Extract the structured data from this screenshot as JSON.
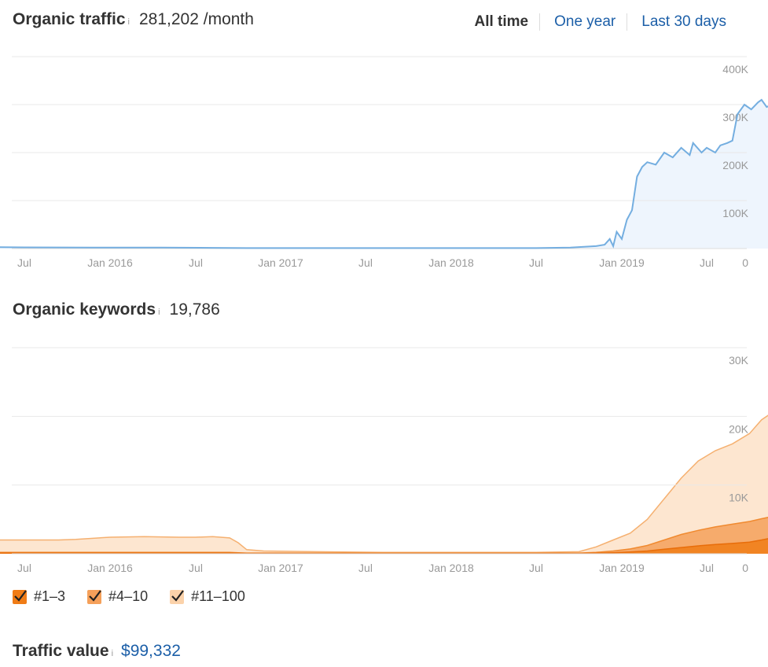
{
  "organic_traffic": {
    "title": "Organic traffic",
    "info": "i",
    "value": "281,202 /month"
  },
  "period_tabs": [
    {
      "label": "All time",
      "active": true
    },
    {
      "label": "One year",
      "active": false
    },
    {
      "label": "Last 30 days",
      "active": false
    }
  ],
  "organic_keywords": {
    "title": "Organic keywords",
    "info": "i",
    "value": "19,786"
  },
  "legend": [
    {
      "label": "#1–3",
      "color": "#f07c16"
    },
    {
      "label": "#4–10",
      "color": "#f5a05a"
    },
    {
      "label": "#11–100",
      "color": "#fbd2aa"
    }
  ],
  "traffic_value": {
    "title": "Traffic value",
    "info": "i",
    "value": "$99,332"
  },
  "chart_data": [
    {
      "type": "area",
      "name": "organic-traffic-chart",
      "x_ticks": [
        "Jul",
        "Jan 2016",
        "Jul",
        "Jan 2017",
        "Jul",
        "Jan 2018",
        "Jul",
        "Jan 2019",
        "Jul"
      ],
      "y_ticks": [
        "400K",
        "300K",
        "200K",
        "100K",
        "0"
      ],
      "ylim": [
        0,
        400000
      ],
      "x": [
        2015.29,
        2015.5,
        2015.9,
        2016.3,
        2016.6,
        2016.8,
        2017.5,
        2018.5,
        2018.7,
        2018.85,
        2018.9,
        2018.93,
        2018.95,
        2018.97,
        2019.0,
        2019.03,
        2019.06,
        2019.09,
        2019.12,
        2019.15,
        2019.2,
        2019.25,
        2019.3,
        2019.35,
        2019.4,
        2019.42,
        2019.47,
        2019.5,
        2019.55,
        2019.58,
        2019.62,
        2019.65,
        2019.68,
        2019.72,
        2019.76,
        2019.8,
        2019.82,
        2019.85,
        2019.88
      ],
      "values": [
        3000,
        2500,
        2000,
        2000,
        1500,
        1000,
        1000,
        1000,
        2000,
        5000,
        8000,
        20000,
        5000,
        35000,
        20000,
        60000,
        80000,
        150000,
        170000,
        180000,
        175000,
        200000,
        190000,
        210000,
        195000,
        220000,
        200000,
        210000,
        200000,
        215000,
        220000,
        225000,
        280000,
        300000,
        290000,
        305000,
        310000,
        295000,
        300000
      ],
      "color": "#74aee0",
      "fill": "#eef5fd"
    },
    {
      "type": "area",
      "name": "organic-keywords-chart",
      "x_ticks": [
        "Jul",
        "Jan 2016",
        "Jul",
        "Jan 2017",
        "Jul",
        "Jan 2018",
        "Jul",
        "Jan 2019",
        "Jul"
      ],
      "y_ticks": [
        "30K",
        "20K",
        "10K",
        "0"
      ],
      "ylim": [
        0,
        30000
      ],
      "x": [
        2015.29,
        2015.5,
        2015.7,
        2015.8,
        2016.0,
        2016.2,
        2016.4,
        2016.5,
        2016.6,
        2016.7,
        2016.75,
        2016.8,
        2016.9,
        2017.2,
        2017.6,
        2018.0,
        2018.5,
        2018.75,
        2018.85,
        2018.95,
        2019.05,
        2019.15,
        2019.25,
        2019.35,
        2019.45,
        2019.55,
        2019.65,
        2019.75,
        2019.82,
        2019.88
      ],
      "series": [
        {
          "name": "#11–100",
          "values": [
            2000,
            2000,
            2000,
            2100,
            2400,
            2500,
            2400,
            2400,
            2500,
            2300,
            1600,
            600,
            400,
            300,
            200,
            200,
            200,
            300,
            1000,
            2000,
            3000,
            5000,
            8000,
            11000,
            13500,
            15000,
            16000,
            17500,
            19500,
            20500
          ]
        },
        {
          "name": "#4–10",
          "values": [
            200,
            200,
            200,
            200,
            200,
            200,
            200,
            200,
            200,
            200,
            150,
            100,
            100,
            100,
            100,
            100,
            100,
            100,
            200,
            400,
            700,
            1200,
            2000,
            2800,
            3400,
            3900,
            4300,
            4700,
            5100,
            5400
          ]
        },
        {
          "name": "#1–3",
          "values": [
            100,
            100,
            100,
            100,
            100,
            100,
            100,
            100,
            100,
            100,
            80,
            50,
            50,
            50,
            50,
            50,
            50,
            50,
            80,
            150,
            250,
            400,
            650,
            900,
            1150,
            1350,
            1500,
            1700,
            2000,
            2300
          ]
        }
      ]
    }
  ]
}
